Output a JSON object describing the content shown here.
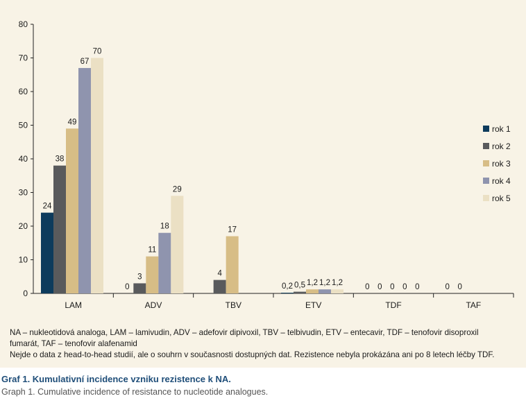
{
  "chart_data": {
    "type": "bar",
    "categories": [
      "LAM",
      "ADV",
      "TBV",
      "ETV",
      "TDF",
      "TAF"
    ],
    "series": [
      {
        "name": "rok 1",
        "color": "#0d3b5c",
        "values": [
          24,
          0,
          null,
          0.2,
          0,
          0
        ],
        "labels": [
          "24",
          "0",
          "",
          "0,2",
          "0",
          "0"
        ]
      },
      {
        "name": "rok 2",
        "color": "#595a5c",
        "values": [
          38,
          3,
          4,
          0.5,
          0,
          0
        ],
        "labels": [
          "38",
          "3",
          "4",
          "0,5",
          "0",
          "0"
        ]
      },
      {
        "name": "rok 3",
        "color": "#d7bd86",
        "values": [
          49,
          11,
          17,
          1.2,
          0,
          null
        ],
        "labels": [
          "49",
          "11",
          "17",
          "1,2",
          "0",
          ""
        ]
      },
      {
        "name": "rok 4",
        "color": "#8f94ae",
        "values": [
          67,
          18,
          null,
          1.2,
          0,
          null
        ],
        "labels": [
          "67",
          "18",
          "",
          "1,2",
          "0",
          ""
        ]
      },
      {
        "name": "rok 5",
        "color": "#ebe0c4",
        "values": [
          70,
          29,
          null,
          1.2,
          0,
          null
        ],
        "labels": [
          "70",
          "29",
          "",
          "1,2",
          "0",
          ""
        ]
      }
    ],
    "yticks": [
      "0",
      "10",
      "20",
      "30",
      "40",
      "50",
      "60",
      "70",
      "80"
    ],
    "ylim": [
      0,
      80
    ],
    "grid": false,
    "legend_position": "right"
  },
  "notes": {
    "line1": "NA – nukleotidová analoga, LAM – lamivudin, ADV – adefovir dipivoxil, TBV – telbivudin, ETV – entecavir, TDF – tenofovir disoproxil",
    "line2": "fumarát, TAF – tenofovir alafenamid",
    "line3": "Nejde o data z head-to-head studií, ale o souhrn v současnosti dostupných dat.  Rezistence nebyla prokázána ani po 8 letech léčby TDF."
  },
  "caption": {
    "title": "Graf 1. Kumulativní incidence vzniku rezistence k NA.",
    "subtitle": "Graph 1. Cumulative incidence of resistance to nucleotide analogues."
  }
}
